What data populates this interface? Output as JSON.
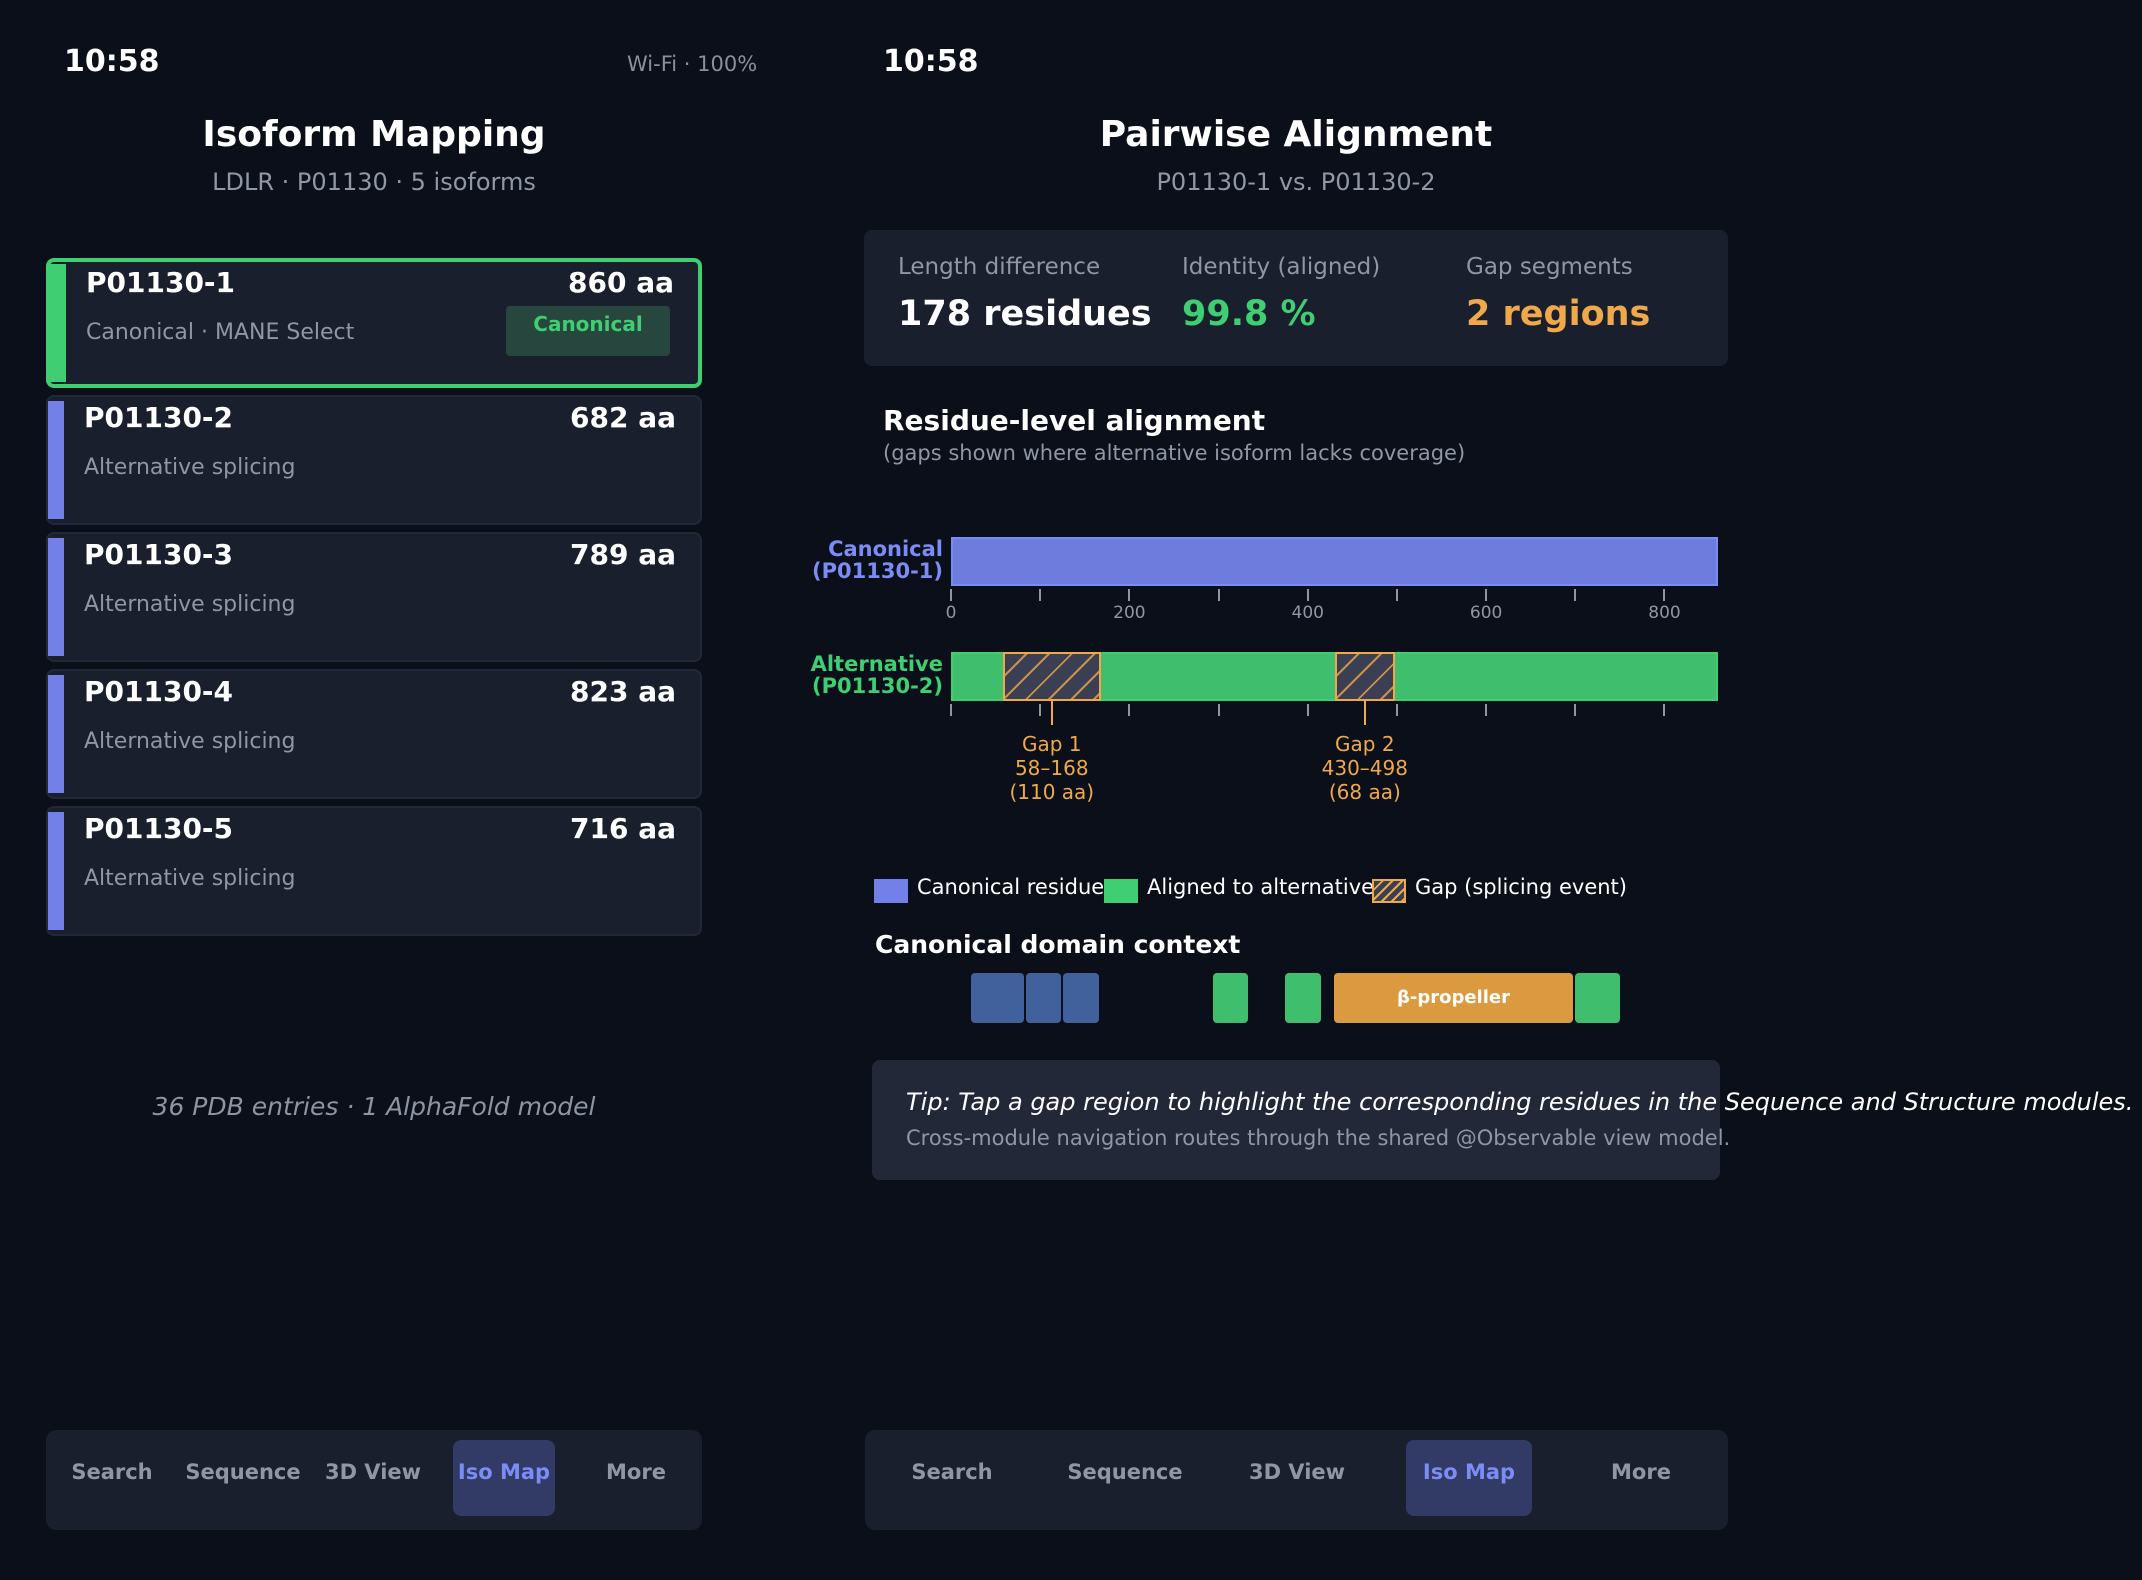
{
  "left": {
    "status": {
      "time": "10:58",
      "right": "Wi-Fi · 100%"
    },
    "header": {
      "title": "Isoform Mapping",
      "subtitle": "LDLR · P01130 · 5 isoforms"
    },
    "isoforms": [
      {
        "id": "P01130-1",
        "length": "860 aa",
        "desc": "Canonical · MANE Select",
        "badge": "Canonical",
        "selected": true
      },
      {
        "id": "P01130-2",
        "length": "682 aa",
        "desc": "Alternative splicing"
      },
      {
        "id": "P01130-3",
        "length": "789 aa",
        "desc": "Alternative splicing"
      },
      {
        "id": "P01130-4",
        "length": "823 aa",
        "desc": "Alternative splicing"
      },
      {
        "id": "P01130-5",
        "length": "716 aa",
        "desc": "Alternative splicing"
      }
    ],
    "footnote": "36 PDB entries · 1 AlphaFold model",
    "tabs": [
      "Search",
      "Sequence",
      "3D View",
      "Iso Map",
      "More"
    ],
    "active_tab": "Iso Map"
  },
  "right": {
    "status": {
      "time": "10:58"
    },
    "header": {
      "title": "Pairwise Alignment",
      "subtitle": "P01130-1  vs.  P01130-2"
    },
    "stats": [
      {
        "label": "Length difference",
        "value": "178 residues",
        "color": "#ffffff"
      },
      {
        "label": "Identity (aligned)",
        "value": "99.8 %",
        "color": "#3fcf72"
      },
      {
        "label": "Gap segments",
        "value": "2 regions",
        "color": "#f0a94a"
      }
    ],
    "section": {
      "title": "Residue-level alignment",
      "subtitle": "(gaps shown where alternative isoform lacks coverage)"
    },
    "alignment": {
      "canonical_label_1": "Canonical",
      "canonical_label_2": "(P01130-1)",
      "alternative_label_1": "Alternative",
      "alternative_label_2": "(P01130-2)",
      "canonical_length": 860,
      "axis_ticks": [
        0,
        200,
        400,
        600,
        800
      ],
      "gaps": [
        {
          "name": "Gap 1",
          "range": "58–168",
          "size": "(110 aa)",
          "start": 58,
          "end": 168
        },
        {
          "name": "Gap 2",
          "range": "430–498",
          "size": "(68 aa)",
          "start": 430,
          "end": 498
        }
      ]
    },
    "legend": [
      {
        "label": "Canonical residue",
        "color": "#7280e8"
      },
      {
        "label": "Aligned to alternative",
        "color": "#3fcf72"
      },
      {
        "label": "Gap (splicing event)",
        "color": "#f0a94a"
      }
    ],
    "domain_title": "Canonical domain context",
    "domain_label": "β-propeller",
    "tip": {
      "line1": "Tip:  Tap a gap region to highlight the corresponding residues in the Sequence and Structure modules.",
      "line2": "Cross-module navigation routes through the shared @Observable view model."
    },
    "tabs": [
      "Search",
      "Sequence",
      "3D View",
      "Iso Map",
      "More"
    ],
    "active_tab": "Iso Map"
  }
}
